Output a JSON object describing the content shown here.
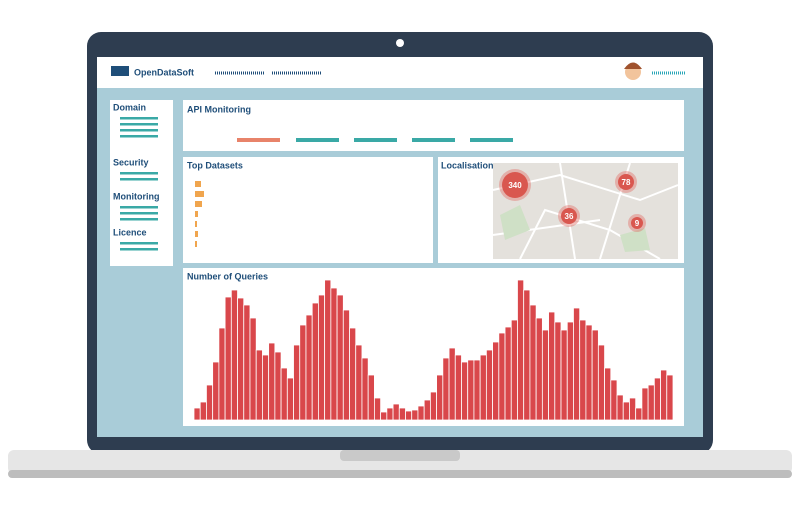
{
  "header": {
    "brand": "OpenDataSoft"
  },
  "sidebar": {
    "items": [
      "Domain",
      "Security",
      "Monitoring",
      "Licence"
    ]
  },
  "main": {
    "title": "API Monitoring"
  },
  "top_datasets": {
    "title": "Top Datasets",
    "values": [
      6,
      9,
      7,
      3,
      2,
      3,
      2
    ]
  },
  "localisation": {
    "title": "Localisation",
    "clusters": [
      "340",
      "78",
      "36",
      "9"
    ]
  },
  "queries": {
    "title": "Number of Queries",
    "values": [
      12,
      18,
      35,
      58,
      92,
      123,
      130,
      122,
      115,
      102,
      70,
      65,
      77,
      68,
      52,
      42,
      75,
      95,
      105,
      117,
      125,
      140,
      132,
      125,
      110,
      92,
      75,
      62,
      45,
      22,
      8,
      12,
      16,
      12,
      9,
      10,
      14,
      20,
      28,
      45,
      62,
      72,
      65,
      58,
      60,
      60,
      65,
      70,
      78,
      87,
      93,
      100,
      140,
      130,
      115,
      102,
      90,
      108,
      98,
      90,
      98,
      112,
      100,
      95,
      90,
      75,
      52,
      40,
      25,
      18,
      22,
      12,
      32,
      35,
      42,
      50,
      45
    ]
  }
}
